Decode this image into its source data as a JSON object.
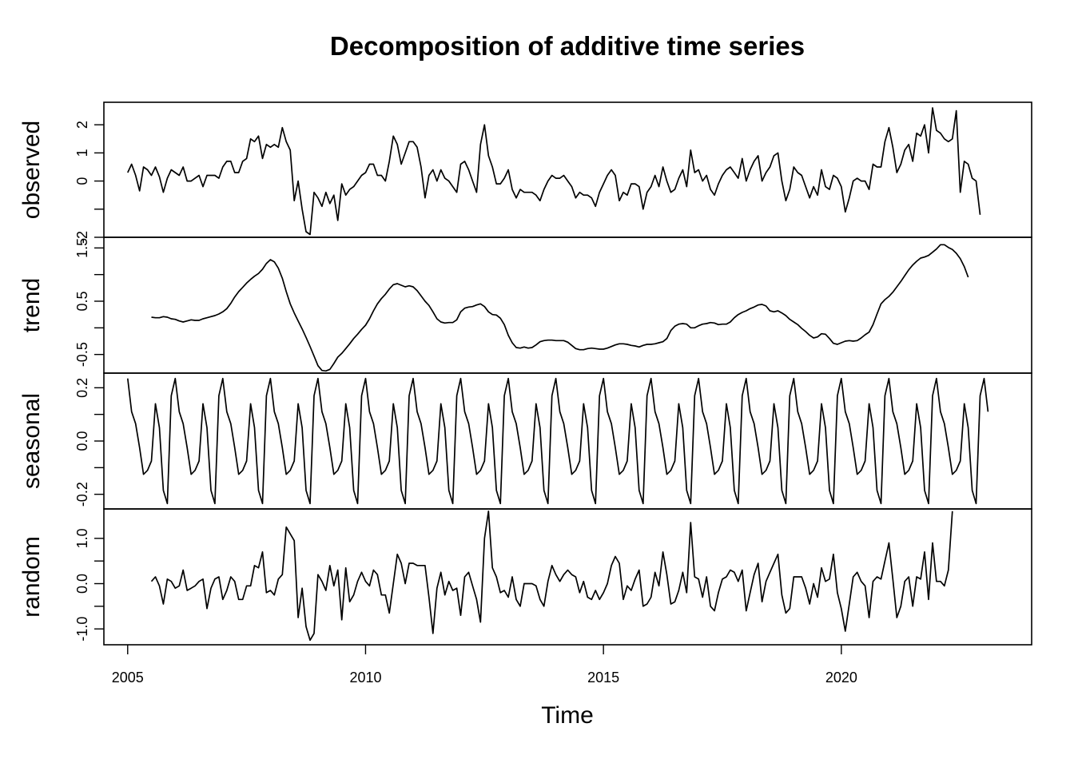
{
  "chart_data": {
    "type": "line",
    "title": "Decomposition of additive time series",
    "xlabel": "Time",
    "frequency": 12,
    "start": [
      2005,
      1
    ],
    "xlim": [
      2004.5,
      2024.0
    ],
    "x_ticks": [
      2005,
      2010,
      2015,
      2020
    ],
    "x_tick_labels": [
      "2005",
      "2010",
      "2015",
      "2020"
    ],
    "panels": [
      {
        "ylabel": "observed",
        "ylim": [
          -2.0,
          2.8
        ],
        "y_ticks": [
          -2,
          -1,
          0,
          1,
          2
        ],
        "y_tick_labels": [
          "-2",
          "",
          "0",
          "1",
          "2"
        ],
        "start": [
          2005,
          1
        ],
        "values": [
          0.3,
          0.6,
          0.2,
          -0.35,
          0.5,
          0.4,
          0.2,
          0.5,
          0.15,
          -0.4,
          0.1,
          0.4,
          0.3,
          0.2,
          0.5,
          0.0,
          0.0,
          0.1,
          0.2,
          -0.2,
          0.2,
          0.2,
          0.2,
          0.1,
          0.5,
          0.7,
          0.7,
          0.3,
          0.3,
          0.7,
          0.8,
          1.5,
          1.4,
          1.6,
          0.8,
          1.3,
          1.2,
          1.3,
          1.2,
          1.9,
          1.4,
          1.1,
          -0.7,
          0.0,
          -1.0,
          -1.8,
          -1.9,
          -0.4,
          -0.6,
          -0.9,
          -0.4,
          -0.8,
          -0.5,
          -1.4,
          -0.1,
          -0.5,
          -0.3,
          -0.2,
          0.0,
          0.2,
          0.3,
          0.6,
          0.6,
          0.2,
          0.2,
          0.0,
          0.7,
          1.6,
          1.3,
          0.6,
          1.0,
          1.4,
          1.4,
          1.2,
          0.5,
          -0.6,
          0.2,
          0.4,
          0.0,
          0.4,
          0.1,
          0.0,
          -0.2,
          -0.4,
          0.6,
          0.7,
          0.4,
          0.0,
          -0.4,
          1.3,
          2.0,
          0.9,
          0.5,
          -0.1,
          -0.1,
          0.1,
          0.4,
          -0.3,
          -0.6,
          -0.3,
          -0.4,
          -0.4,
          -0.4,
          -0.5,
          -0.7,
          -0.3,
          0.0,
          0.2,
          0.1,
          0.1,
          0.2,
          0.0,
          -0.2,
          -0.6,
          -0.4,
          -0.5,
          -0.5,
          -0.6,
          -0.9,
          -0.4,
          -0.1,
          0.2,
          0.4,
          0.2,
          -0.7,
          -0.4,
          -0.5,
          -0.1,
          -0.1,
          -0.2,
          -1.0,
          -0.4,
          -0.2,
          0.2,
          -0.2,
          0.5,
          0.0,
          -0.4,
          -0.3,
          0.1,
          0.4,
          -0.2,
          1.1,
          0.3,
          0.4,
          0.0,
          0.2,
          -0.3,
          -0.5,
          -0.1,
          0.2,
          0.4,
          0.5,
          0.3,
          0.1,
          0.8,
          0.0,
          0.4,
          0.7,
          0.9,
          0.0,
          0.3,
          0.5,
          0.9,
          1.0,
          0.0,
          -0.7,
          -0.3,
          0.5,
          0.3,
          0.2,
          -0.2,
          -0.6,
          -0.2,
          -0.5,
          0.4,
          -0.2,
          -0.3,
          0.2,
          0.1,
          -0.2,
          -1.1,
          -0.6,
          0.0,
          0.1,
          0.0,
          0.0,
          -0.3,
          0.6,
          0.5,
          0.5,
          1.4,
          1.9,
          1.2,
          0.3,
          0.6,
          1.1,
          1.3,
          0.7,
          1.7,
          1.6,
          2.0,
          1.0,
          2.6,
          1.8,
          1.7,
          1.5,
          1.4,
          1.5,
          2.5,
          -0.4,
          0.7,
          0.6,
          0.1,
          0.0,
          -1.2
        ]
      },
      {
        "ylabel": "trend",
        "ylim": [
          -0.85,
          1.7
        ],
        "y_ticks": [
          -0.5,
          0.0,
          0.5,
          1.0,
          1.5
        ],
        "y_tick_labels": [
          "-0.5",
          "",
          "0.5",
          "",
          "1.5"
        ],
        "start": [
          2005,
          7
        ],
        "values": [
          0.2,
          0.19,
          0.19,
          0.21,
          0.2,
          0.17,
          0.16,
          0.13,
          0.11,
          0.13,
          0.15,
          0.14,
          0.14,
          0.17,
          0.19,
          0.21,
          0.23,
          0.26,
          0.3,
          0.36,
          0.46,
          0.58,
          0.68,
          0.76,
          0.84,
          0.91,
          0.97,
          1.02,
          1.1,
          1.21,
          1.28,
          1.24,
          1.12,
          0.93,
          0.68,
          0.45,
          0.28,
          0.13,
          -0.02,
          -0.18,
          -0.35,
          -0.53,
          -0.71,
          -0.8,
          -0.81,
          -0.78,
          -0.67,
          -0.55,
          -0.48,
          -0.39,
          -0.3,
          -0.2,
          -0.12,
          -0.03,
          0.05,
          0.17,
          0.32,
          0.45,
          0.55,
          0.63,
          0.73,
          0.81,
          0.83,
          0.8,
          0.77,
          0.79,
          0.77,
          0.7,
          0.6,
          0.5,
          0.42,
          0.3,
          0.17,
          0.11,
          0.09,
          0.1,
          0.1,
          0.15,
          0.3,
          0.37,
          0.39,
          0.4,
          0.43,
          0.45,
          0.4,
          0.3,
          0.25,
          0.24,
          0.18,
          0.06,
          -0.14,
          -0.28,
          -0.37,
          -0.38,
          -0.36,
          -0.38,
          -0.37,
          -0.32,
          -0.26,
          -0.24,
          -0.23,
          -0.23,
          -0.24,
          -0.24,
          -0.24,
          -0.27,
          -0.33,
          -0.39,
          -0.41,
          -0.41,
          -0.39,
          -0.38,
          -0.39,
          -0.4,
          -0.4,
          -0.38,
          -0.35,
          -0.32,
          -0.3,
          -0.3,
          -0.31,
          -0.33,
          -0.34,
          -0.36,
          -0.33,
          -0.31,
          -0.31,
          -0.3,
          -0.28,
          -0.26,
          -0.2,
          -0.05,
          0.03,
          0.07,
          0.08,
          0.07,
          0.0,
          0.0,
          0.04,
          0.07,
          0.08,
          0.1,
          0.09,
          0.06,
          0.07,
          0.07,
          0.11,
          0.19,
          0.25,
          0.29,
          0.32,
          0.36,
          0.39,
          0.43,
          0.44,
          0.41,
          0.32,
          0.3,
          0.32,
          0.28,
          0.23,
          0.16,
          0.11,
          0.06,
          -0.01,
          -0.07,
          -0.14,
          -0.19,
          -0.17,
          -0.11,
          -0.12,
          -0.2,
          -0.29,
          -0.31,
          -0.28,
          -0.25,
          -0.24,
          -0.25,
          -0.24,
          -0.19,
          -0.13,
          -0.08,
          0.06,
          0.26,
          0.45,
          0.53,
          0.59,
          0.67,
          0.77,
          0.87,
          0.98,
          1.09,
          1.18,
          1.25,
          1.31,
          1.33,
          1.36,
          1.42,
          1.48,
          1.56,
          1.56,
          1.51,
          1.47,
          1.4,
          1.3,
          1.15,
          0.95
        ]
      },
      {
        "ylabel": "seasonal",
        "ylim": [
          -0.255,
          0.255
        ],
        "y_ticks": [
          -0.2,
          -0.1,
          0.0,
          0.1,
          0.2
        ],
        "y_tick_labels": [
          "-0.2",
          "",
          "0.0",
          "",
          "0.2"
        ],
        "start": [
          2005,
          1
        ],
        "pattern": [
          0.235,
          0.11,
          0.065,
          -0.025,
          -0.125,
          -0.11,
          -0.075,
          0.14,
          0.05,
          -0.185,
          -0.235,
          0.17
        ],
        "cycles": 18,
        "extra_months": 2
      },
      {
        "ylabel": "random",
        "ylim": [
          -1.35,
          1.65
        ],
        "y_ticks": [
          -1.0,
          -0.5,
          0.0,
          0.5,
          1.0
        ],
        "y_tick_labels": [
          "-1.0",
          "",
          "0.0",
          "",
          "1.0"
        ],
        "start": [
          2005,
          7
        ],
        "values": [
          0.05,
          0.15,
          -0.05,
          -0.45,
          0.1,
          0.05,
          -0.1,
          -0.05,
          0.3,
          -0.15,
          -0.1,
          -0.05,
          0.05,
          0.1,
          -0.55,
          -0.1,
          0.1,
          0.15,
          -0.35,
          -0.15,
          0.15,
          0.05,
          -0.35,
          -0.35,
          -0.05,
          -0.05,
          0.4,
          0.35,
          0.7,
          -0.2,
          -0.15,
          -0.25,
          0.1,
          0.2,
          1.25,
          1.1,
          0.95,
          -0.75,
          -0.1,
          -0.95,
          -1.25,
          -1.1,
          0.2,
          0.05,
          -0.15,
          0.4,
          -0.05,
          0.3,
          -0.8,
          0.35,
          -0.4,
          -0.25,
          0.05,
          0.25,
          0.05,
          -0.05,
          0.3,
          0.2,
          -0.25,
          -0.25,
          -0.65,
          0.0,
          0.65,
          0.45,
          0.0,
          0.45,
          0.45,
          0.4,
          0.4,
          0.4,
          -0.3,
          -1.1,
          -0.1,
          0.25,
          -0.25,
          0.05,
          -0.15,
          -0.1,
          -0.7,
          0.15,
          0.25,
          -0.05,
          -0.35,
          -0.85,
          1.0,
          1.6,
          0.35,
          0.15,
          -0.2,
          -0.15,
          -0.3,
          0.15,
          -0.35,
          -0.5,
          0.0,
          0.0,
          0.0,
          -0.05,
          -0.35,
          -0.5,
          0.05,
          0.4,
          0.2,
          0.05,
          0.2,
          0.3,
          0.2,
          0.15,
          -0.2,
          0.05,
          -0.3,
          -0.35,
          -0.15,
          -0.35,
          -0.2,
          0.0,
          0.4,
          0.6,
          0.45,
          -0.35,
          -0.05,
          -0.15,
          0.1,
          0.3,
          -0.5,
          -0.45,
          -0.3,
          0.25,
          -0.05,
          0.7,
          0.2,
          -0.45,
          -0.4,
          -0.15,
          0.25,
          -0.2,
          1.35,
          0.15,
          0.1,
          -0.3,
          0.15,
          -0.5,
          -0.6,
          -0.2,
          0.1,
          0.15,
          0.3,
          0.25,
          0.05,
          0.3,
          -0.6,
          -0.2,
          0.2,
          0.45,
          -0.4,
          0.05,
          0.25,
          0.45,
          0.65,
          -0.25,
          -0.65,
          -0.55,
          0.15,
          0.15,
          0.15,
          -0.1,
          -0.45,
          0.0,
          -0.3,
          0.35,
          0.05,
          0.1,
          0.65,
          -0.2,
          -0.55,
          -1.05,
          -0.45,
          0.15,
          0.25,
          0.05,
          -0.05,
          -0.75,
          0.05,
          0.15,
          0.1,
          0.5,
          0.9,
          0.1,
          -0.75,
          -0.5,
          0.05,
          0.15,
          -0.5,
          0.15,
          0.1,
          0.7,
          -0.35,
          0.9,
          0.05,
          0.05,
          -0.05,
          0.3,
          1.6
        ]
      }
    ]
  }
}
